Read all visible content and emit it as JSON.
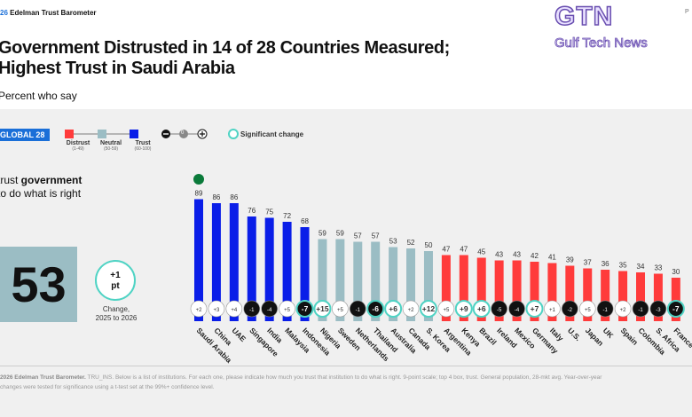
{
  "header": {
    "brand_year": "26",
    "brand": "Edelman Trust Barometer",
    "watermark": "GTN",
    "watermark_sub": "Gulf Tech News",
    "page_mark": "P"
  },
  "title_line1": "Government Distrusted in 14 of 28 Countries Measured;",
  "title_line2": "Highest Trust in Saudi Arabia",
  "subtitle": "Percent who say",
  "legend": {
    "badge": "GLOBAL 28",
    "distrust": "Distrust",
    "distrust_range": "(1-49)",
    "neutral": "Neutral",
    "neutral_range": "(50-59)",
    "trust": "Trust",
    "trust_range": "(60-100)",
    "zero": "0",
    "significant": "Significant change"
  },
  "question": {
    "pre": "trust ",
    "bold": "government",
    "line2": "to do what is right"
  },
  "global": {
    "value": "53",
    "change": "+1",
    "change_unit": "pt",
    "change_label": "Change,",
    "change_period": "2025 to 2026"
  },
  "colors": {
    "distrust": "#ff3b3b",
    "neutral": "#9bbdc4",
    "trust": "#0a1ee8",
    "significant": "#4fd3c4"
  },
  "chart_data": {
    "type": "bar",
    "ylim": [
      0,
      100
    ],
    "categories": [
      "Saudi Arabia",
      "China",
      "UAE",
      "Singapore",
      "India",
      "Malaysia",
      "Indonesia",
      "Nigeria",
      "Sweden",
      "Netherlands",
      "Thailand",
      "Australia",
      "Canada",
      "S. Korea",
      "Argentina",
      "Kenya",
      "Brazil",
      "Ireland",
      "Mexico",
      "Germany",
      "Italy",
      "U.S.",
      "Japan",
      "UK",
      "Spain",
      "Colombia",
      "S. Africa",
      "France"
    ],
    "values": [
      89,
      86,
      86,
      76,
      75,
      72,
      68,
      59,
      59,
      57,
      57,
      53,
      52,
      50,
      47,
      47,
      45,
      43,
      43,
      42,
      41,
      39,
      37,
      36,
      35,
      34,
      33,
      30
    ],
    "changes": [
      "+2",
      "+3",
      "+4",
      "-1",
      "-4",
      "+5",
      "-7",
      "+15",
      "+5",
      "-1",
      "-6",
      "+6",
      "+2",
      "+12",
      "+5",
      "+9",
      "+6",
      "-5",
      "-4",
      "+7",
      "+1",
      "-2",
      "+5",
      "-1",
      "+2",
      "-1",
      "-3",
      "-7"
    ],
    "significant": [
      false,
      false,
      false,
      false,
      false,
      false,
      true,
      true,
      false,
      false,
      true,
      true,
      false,
      true,
      false,
      true,
      true,
      false,
      false,
      true,
      false,
      false,
      false,
      false,
      false,
      false,
      false,
      true
    ]
  },
  "footer": {
    "source": "2026 Edelman Trust Barometer.",
    "text": " TRU_INS. Below is a list of institutions. For each one, please indicate how much you trust that institution to do what is right. 9-point scale; top 4 box, trust. General population, 28-mkt avg. Year-over-year",
    "line2": "changes were tested for significance using a t-test set at the 99%+ confidence level."
  }
}
